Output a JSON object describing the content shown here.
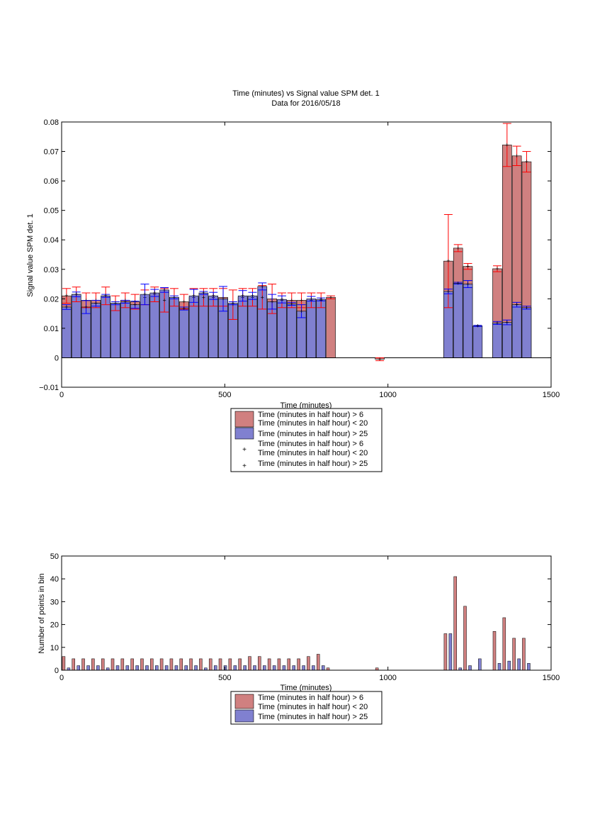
{
  "figure": {
    "title_line1": "Time (minutes) vs Signal value SPM det. 1",
    "title_line2": "Data for 2016/05/18"
  },
  "colors": {
    "red_fill": "#d08080",
    "blue_fill": "#8080d0",
    "red_err": "#ff0000",
    "blue_err": "#0000ff",
    "axis": "#000000"
  },
  "chart_data": [
    {
      "type": "bar",
      "xlabel": "Time (minutes)",
      "ylabel": "Signal value SPM det. 1",
      "xlim": [
        0,
        1500
      ],
      "ylim": [
        -0.01,
        0.08
      ],
      "xticks": [
        0,
        500,
        1000,
        1500
      ],
      "yticks": [
        -0.01,
        0,
        0.01,
        0.02,
        0.03,
        0.04,
        0.05,
        0.06,
        0.07,
        0.08
      ],
      "ytick_labels": [
        "−0.01",
        "0",
        "0.01",
        "0.02",
        "0.03",
        "0.04",
        "0.05",
        "0.06",
        "0.07",
        "0.08"
      ],
      "legend_position": "below",
      "legend": [
        "Time (minutes in half hour) > 6\nTime (minutes in half hour) < 20",
        "Time (minutes in half hour) > 25",
        "Time (minutes in half hour) > 6\nTime (minutes in half hour) < 20",
        "Time (minutes in half hour) > 25"
      ],
      "series": [
        {
          "kind": "bar",
          "x": [
            15,
            45,
            75,
            105,
            135,
            165,
            195,
            225,
            255,
            285,
            315,
            345,
            375,
            405,
            435,
            465,
            495,
            525,
            555,
            585,
            615,
            645,
            675,
            705,
            735,
            765,
            795,
            825,
            975,
            1185,
            1215,
            1245,
            1335,
            1365,
            1395,
            1425
          ],
          "y": [
            0.021,
            0.0215,
            0.0195,
            0.0195,
            0.021,
            0.0185,
            0.0195,
            0.019,
            0.0205,
            0.0215,
            0.0195,
            0.0205,
            0.019,
            0.0205,
            0.0205,
            0.0205,
            0.0205,
            0.018,
            0.0205,
            0.0205,
            0.0205,
            0.02,
            0.0195,
            0.0195,
            0.0195,
            0.0195,
            0.0195,
            0.0205,
            -0.0005,
            0.0328,
            0.0372,
            0.031,
            0.0302,
            0.0722,
            0.0685,
            0.0665
          ],
          "err": [
            0.0025,
            0.0025,
            0.0025,
            0.0025,
            0.003,
            0.0025,
            0.0025,
            0.0025,
            0.0025,
            0.0025,
            0.004,
            0.003,
            0.0025,
            0.003,
            0.003,
            0.003,
            0.003,
            0.005,
            0.003,
            0.003,
            0.004,
            0.005,
            0.0025,
            0.0025,
            0.0025,
            0.0025,
            0.0025,
            0.0005,
            0.0005,
            0.0158,
            0.0012,
            0.001,
            0.001,
            0.0073,
            0.0033,
            0.0035
          ]
        },
        {
          "kind": "bar",
          "x": [
            15,
            45,
            75,
            105,
            135,
            165,
            195,
            225,
            255,
            285,
            315,
            345,
            375,
            405,
            435,
            465,
            495,
            525,
            555,
            585,
            615,
            645,
            675,
            705,
            735,
            765,
            795,
            1185,
            1215,
            1245,
            1275,
            1335,
            1365,
            1395,
            1425
          ],
          "y": [
            0.0172,
            0.0215,
            0.0172,
            0.0185,
            0.021,
            0.0185,
            0.019,
            0.018,
            0.0215,
            0.022,
            0.023,
            0.0205,
            0.0167,
            0.021,
            0.022,
            0.021,
            0.02,
            0.0185,
            0.021,
            0.021,
            0.0242,
            0.019,
            0.0198,
            0.0183,
            0.0158,
            0.02,
            0.0198,
            0.0225,
            0.0253,
            0.025,
            0.0108,
            0.0118,
            0.012,
            0.018,
            0.017
          ],
          "err": [
            0.0008,
            0.0008,
            0.0022,
            0.001,
            0.0005,
            0.0005,
            0.0005,
            0.0012,
            0.0035,
            0.0012,
            0.0008,
            0.0005,
            0.0005,
            0.0022,
            0.0005,
            0.0012,
            0.0042,
            0.0005,
            0.0018,
            0.0012,
            0.0012,
            0.0025,
            0.0012,
            0.0005,
            0.0022,
            0.0008,
            0.0005,
            0.0008,
            0.0003,
            0.0012,
            0.0002,
            0.0005,
            0.0008,
            0.0008,
            0.0005
          ]
        }
      ]
    },
    {
      "type": "bar",
      "xlabel": "Time (minutes)",
      "ylabel": "Number of points in bin",
      "xlim": [
        0,
        1500
      ],
      "ylim": [
        0,
        50
      ],
      "xticks": [
        0,
        500,
        1000,
        1500
      ],
      "yticks": [
        0,
        10,
        20,
        30,
        40,
        50
      ],
      "legend_position": "below",
      "legend": [
        "Time (minutes in half hour) > 6\nTime (minutes in half hour) < 20",
        "Time (minutes in half hour) > 25"
      ],
      "series": [
        {
          "x": [
            15,
            45,
            75,
            105,
            135,
            165,
            195,
            225,
            255,
            285,
            315,
            345,
            375,
            405,
            435,
            465,
            495,
            525,
            555,
            585,
            615,
            645,
            675,
            705,
            735,
            765,
            795,
            825,
            975,
            1185,
            1215,
            1245,
            1335,
            1365,
            1395,
            1425
          ],
          "y": [
            6,
            5,
            5,
            5,
            5,
            5,
            5,
            5,
            5,
            5,
            5,
            5,
            5,
            5,
            5,
            5,
            5,
            5,
            5,
            6,
            6,
            5,
            5,
            5,
            5,
            6,
            7,
            1,
            1,
            16,
            41,
            28,
            17,
            23,
            14,
            14
          ]
        },
        {
          "x": [
            15,
            45,
            75,
            105,
            135,
            165,
            195,
            225,
            255,
            285,
            315,
            345,
            375,
            405,
            435,
            465,
            495,
            525,
            555,
            585,
            615,
            645,
            675,
            705,
            735,
            765,
            795,
            1185,
            1215,
            1245,
            1275,
            1335,
            1365,
            1395,
            1425
          ],
          "y": [
            1,
            2,
            2,
            2,
            1,
            2,
            2,
            2,
            2,
            2,
            2,
            2,
            2,
            2,
            1,
            2,
            2,
            2,
            2,
            2,
            2,
            2,
            2,
            2,
            2,
            2,
            2,
            16,
            1,
            2,
            5,
            3,
            4,
            5,
            3
          ]
        }
      ]
    }
  ]
}
